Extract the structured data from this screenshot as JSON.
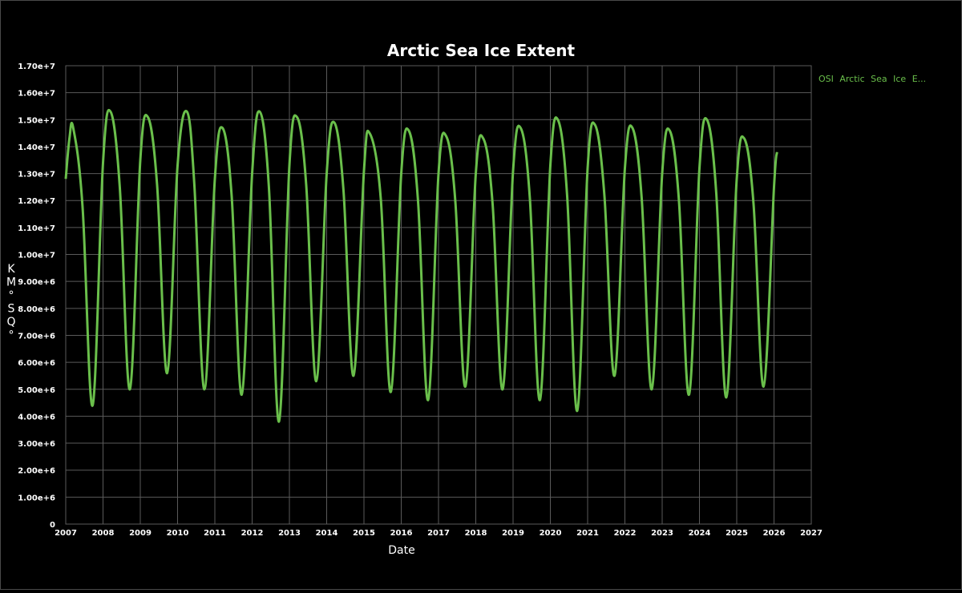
{
  "chart_data": {
    "type": "line",
    "title": "Arctic Sea Ice Extent",
    "xlabel": "Date",
    "ylabel": [
      "K",
      "M",
      "°",
      "S",
      "Q",
      "°"
    ],
    "xlim": [
      2007,
      2027
    ],
    "ylim": [
      0,
      17000000
    ],
    "x_ticks": [
      "2007",
      "2008",
      "2009",
      "2010",
      "2011",
      "2012",
      "2013",
      "2014",
      "2015",
      "2016",
      "2017",
      "2018",
      "2019",
      "2020",
      "2021",
      "2022",
      "2023",
      "2024",
      "2025",
      "2026",
      "2027"
    ],
    "y_ticks": [
      "0",
      "1.00e+6",
      "2.00e+6",
      "3.00e+6",
      "4.00e+6",
      "5.00e+6",
      "6.00e+6",
      "7.00e+6",
      "8.00e+6",
      "9.00e+6",
      "1.00e+7",
      "1.10e+7",
      "1.20e+7",
      "1.30e+7",
      "1.40e+7",
      "1.50e+7",
      "1.60e+7",
      "1.70e+7"
    ],
    "grid": true,
    "legend_position": "right",
    "colors": {
      "series": "#6abf4b",
      "grid": "#5a5a5a",
      "background": "#000000",
      "text": "#ffffff"
    },
    "series": [
      {
        "name": "OSI Arctic Sea Ice E...",
        "x": [
          2007.0,
          2007.1,
          2007.2,
          2007.45,
          2007.72,
          2008.0,
          2008.2,
          2008.45,
          2008.72,
          2009.0,
          2009.2,
          2009.45,
          2009.72,
          2010.0,
          2010.25,
          2010.45,
          2010.72,
          2011.0,
          2011.2,
          2011.45,
          2011.72,
          2012.0,
          2012.2,
          2012.45,
          2012.72,
          2013.0,
          2013.2,
          2013.45,
          2013.72,
          2014.0,
          2014.2,
          2014.45,
          2014.72,
          2015.0,
          2015.15,
          2015.45,
          2015.72,
          2016.0,
          2016.2,
          2016.45,
          2016.72,
          2017.0,
          2017.2,
          2017.45,
          2017.72,
          2018.0,
          2018.2,
          2018.45,
          2018.72,
          2019.0,
          2019.2,
          2019.45,
          2019.72,
          2020.0,
          2020.2,
          2020.45,
          2020.72,
          2021.0,
          2021.2,
          2021.45,
          2021.72,
          2022.0,
          2022.2,
          2022.45,
          2022.72,
          2023.0,
          2023.2,
          2023.45,
          2023.72,
          2024.0,
          2024.2,
          2024.45,
          2024.72,
          2025.0,
          2025.2,
          2025.45,
          2025.72,
          2026.0,
          2026.08
        ],
        "values": [
          12800000,
          14300000,
          14700000,
          11800000,
          4400000,
          13400000,
          15300000,
          12500000,
          5000000,
          13500000,
          15100000,
          12600000,
          5600000,
          13300000,
          15300000,
          12600000,
          5000000,
          12800000,
          14700000,
          12200000,
          4800000,
          13000000,
          15300000,
          12500000,
          3800000,
          13300000,
          15100000,
          12600000,
          5300000,
          13000000,
          14900000,
          12400000,
          5500000,
          13100000,
          14500000,
          12100000,
          4900000,
          13000000,
          14600000,
          12000000,
          4600000,
          13000000,
          14400000,
          12000000,
          5100000,
          13000000,
          14300000,
          11900000,
          5000000,
          13100000,
          14700000,
          12100000,
          4600000,
          13300000,
          15000000,
          12200000,
          4200000,
          13200000,
          14800000,
          12200000,
          5500000,
          13200000,
          14700000,
          12100000,
          5000000,
          13000000,
          14600000,
          12000000,
          4800000,
          13200000,
          15000000,
          12300000,
          4700000,
          12800000,
          14300000,
          11900000,
          5100000,
          12500000,
          13800000
        ]
      }
    ]
  }
}
